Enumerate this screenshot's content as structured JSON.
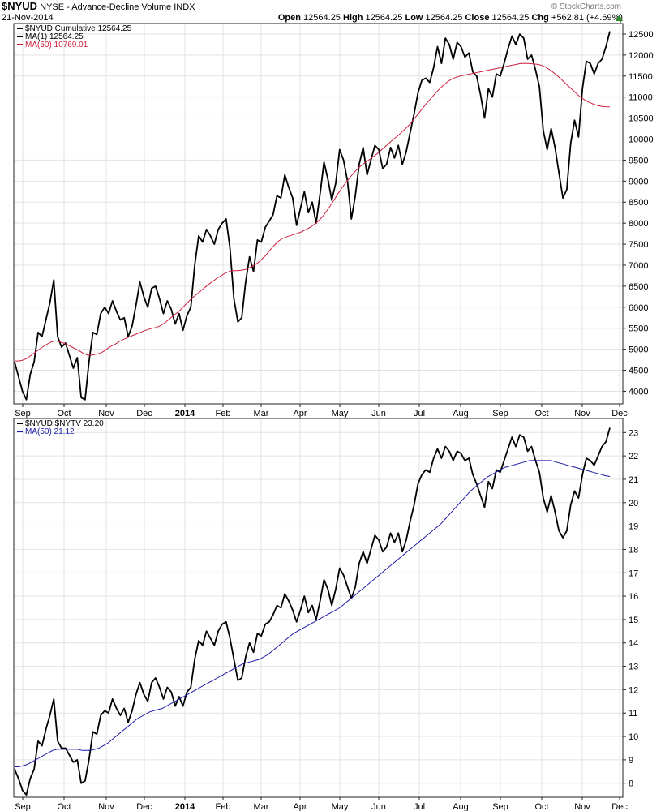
{
  "header": {
    "symbol": "$NYUD",
    "description": "NYSE - Advance-Decline Volume INDX",
    "date": "21-Nov-2014",
    "quote": {
      "open_label": "Open",
      "open": "12564.25",
      "high_label": "High",
      "high": "12564.25",
      "low_label": "Low",
      "low": "12564.25",
      "close_label": "Close",
      "close": "12564.25",
      "chg_label": "Chg",
      "chg": "+562.81 (+4.69%)"
    },
    "watermark": "© StockCharts.com",
    "up_arrow_icon": "triangle-up-icon",
    "up_color": "#2e8b2e"
  },
  "colors": {
    "price_line": "#000000",
    "ma_top": "#cc1f3e",
    "ma_bottom": "#1a1aa6",
    "grid": "#e3e3e3",
    "frame": "#222222"
  },
  "chart_data": [
    {
      "type": "line",
      "legend_placement": "top-left",
      "grid": true,
      "y_axis_side": "right",
      "legend": [
        {
          "label": "$NYUD Cumulative 12564.25",
          "color": "#000000"
        },
        {
          "label": "MA(1) 12564.25",
          "color": "#000000"
        },
        {
          "label": "MA(50) 10769.01",
          "color": "#cc1f3e"
        }
      ],
      "ylim": [
        3700,
        12750
      ],
      "yticks": [
        4000,
        4500,
        5000,
        5500,
        6000,
        6500,
        7000,
        7500,
        8000,
        8500,
        9000,
        9500,
        10000,
        10500,
        11000,
        11500,
        12000,
        12500
      ],
      "xticks": [
        "Sep",
        "Oct",
        "Nov",
        "Dec",
        "2014",
        "Feb",
        "Mar",
        "Apr",
        "May",
        "Jun",
        "Jul",
        "Aug",
        "Sep",
        "Oct",
        "Nov",
        "Dec"
      ],
      "series": [
        {
          "role": "price",
          "values": [
            4700,
            4350,
            4000,
            3800,
            4400,
            4700,
            5400,
            5300,
            5700,
            6100,
            6650,
            5300,
            5050,
            5150,
            4850,
            4550,
            4800,
            3850,
            3800,
            4700,
            5400,
            5350,
            5850,
            6000,
            5850,
            6150,
            5900,
            5700,
            5750,
            5300,
            5550,
            6050,
            6600,
            6250,
            6000,
            6450,
            6500,
            6200,
            5850,
            6150,
            5950,
            5600,
            5850,
            5450,
            5800,
            6000,
            7000,
            7700,
            7550,
            7850,
            7700,
            7500,
            7850,
            8000,
            8100,
            7400,
            6200,
            5650,
            5750,
            6600,
            7200,
            6850,
            7600,
            7550,
            7900,
            8050,
            8200,
            8650,
            8600,
            9150,
            8850,
            8600,
            7950,
            8350,
            8750,
            8250,
            8500,
            8000,
            8700,
            9450,
            9050,
            8550,
            8950,
            9750,
            9500,
            9000,
            8100,
            8650,
            9400,
            9800,
            9150,
            9500,
            9850,
            9750,
            9300,
            9400,
            9800,
            9550,
            9850,
            9400,
            9700,
            10150,
            10600,
            11100,
            11400,
            11450,
            11350,
            11700,
            12200,
            11800,
            12400,
            12250,
            11900,
            12300,
            12200,
            11950,
            12050,
            11600,
            11500,
            11050,
            10500,
            11200,
            11000,
            11550,
            11500,
            11800,
            12150,
            12450,
            12250,
            12500,
            12400,
            11900,
            12000,
            11650,
            11250,
            10200,
            9750,
            10250,
            9800,
            9200,
            8600,
            8800,
            9900,
            10450,
            10050,
            11200,
            11850,
            11800,
            11550,
            11800,
            11900,
            12200,
            12564
          ]
        },
        {
          "role": "ma50",
          "values": [
            4720,
            4720,
            4740,
            4780,
            4850,
            4920,
            4990,
            5060,
            5120,
            5170,
            5200,
            5180,
            5150,
            5110,
            5060,
            5010,
            4960,
            4900,
            4860,
            4860,
            4880,
            4900,
            4950,
            5020,
            5080,
            5130,
            5190,
            5240,
            5280,
            5320,
            5360,
            5400,
            5440,
            5470,
            5500,
            5520,
            5560,
            5620,
            5700,
            5780,
            5860,
            5940,
            6040,
            6140,
            6230,
            6310,
            6390,
            6470,
            6550,
            6620,
            6690,
            6750,
            6810,
            6850,
            6870,
            6870,
            6880,
            6900,
            6940,
            6990,
            7050,
            7140,
            7230,
            7350,
            7460,
            7560,
            7630,
            7670,
            7700,
            7730,
            7760,
            7800,
            7850,
            7900,
            7970,
            8050,
            8150,
            8280,
            8420,
            8570,
            8720,
            8860,
            8990,
            9110,
            9220,
            9320,
            9400,
            9470,
            9540,
            9610,
            9690,
            9780,
            9860,
            9950,
            10030,
            10110,
            10200,
            10290,
            10400,
            10520,
            10640,
            10760,
            10880,
            10990,
            11100,
            11200,
            11290,
            11370,
            11430,
            11470,
            11500,
            11520,
            11540,
            11560,
            11580,
            11600,
            11620,
            11640,
            11660,
            11680,
            11700,
            11720,
            11740,
            11760,
            11780,
            11800,
            11800,
            11800,
            11790,
            11780,
            11760,
            11720,
            11660,
            11590,
            11510,
            11420,
            11330,
            11240,
            11150,
            11060,
            10980,
            10920,
            10870,
            10830,
            10800,
            10780,
            10770,
            10769
          ]
        }
      ]
    },
    {
      "type": "line",
      "legend_placement": "top-left",
      "grid": true,
      "y_axis_side": "right",
      "legend": [
        {
          "label": "$NYUD:$NYTV 23.20",
          "color": "#000000"
        },
        {
          "label": "MA(50) 21.12",
          "color": "#1a1aa6"
        }
      ],
      "ylim": [
        7.4,
        23.6
      ],
      "yticks": [
        8,
        9,
        10,
        11,
        12,
        13,
        14,
        15,
        16,
        17,
        18,
        19,
        20,
        21,
        22,
        23
      ],
      "xticks": [
        "Sep",
        "Oct",
        "Nov",
        "Dec",
        "2014",
        "Feb",
        "Mar",
        "Apr",
        "May",
        "Jun",
        "Jul",
        "Aug",
        "Sep",
        "Oct",
        "Nov",
        "Dec"
      ],
      "series": [
        {
          "role": "ratio",
          "values": [
            8.6,
            8.2,
            7.7,
            7.5,
            8.2,
            8.6,
            9.8,
            9.6,
            10.3,
            10.9,
            11.6,
            9.8,
            9.5,
            9.5,
            9.2,
            8.9,
            9.0,
            8.0,
            8.1,
            9.0,
            10.2,
            10.1,
            10.9,
            11.1,
            11.0,
            11.6,
            11.2,
            10.9,
            11.2,
            10.6,
            11.1,
            11.8,
            12.3,
            11.8,
            11.5,
            12.3,
            12.5,
            12.1,
            11.6,
            12.1,
            11.9,
            11.3,
            11.7,
            11.3,
            11.9,
            12.1,
            13.3,
            14.1,
            13.9,
            14.5,
            14.2,
            13.9,
            14.5,
            14.8,
            14.9,
            14.2,
            13.3,
            12.4,
            12.5,
            13.4,
            14.0,
            13.6,
            14.4,
            14.3,
            14.8,
            14.9,
            15.2,
            15.6,
            15.5,
            16.1,
            15.8,
            15.4,
            14.9,
            15.4,
            16.0,
            15.3,
            15.6,
            15.0,
            15.8,
            16.7,
            16.3,
            15.6,
            16.3,
            17.2,
            16.9,
            16.4,
            15.9,
            16.4,
            17.4,
            17.9,
            17.4,
            18.0,
            18.6,
            18.4,
            17.9,
            18.1,
            18.7,
            18.3,
            18.7,
            17.9,
            18.4,
            19.2,
            19.9,
            20.8,
            21.2,
            21.4,
            21.3,
            21.9,
            22.3,
            21.9,
            22.4,
            22.2,
            21.8,
            22.2,
            22.1,
            21.8,
            21.9,
            21.2,
            20.8,
            20.3,
            19.8,
            20.9,
            20.6,
            21.4,
            21.3,
            21.8,
            22.3,
            22.8,
            22.4,
            22.9,
            22.8,
            22.2,
            22.4,
            21.8,
            21.3,
            20.2,
            19.6,
            20.3,
            19.6,
            18.8,
            18.5,
            18.8,
            19.9,
            20.5,
            20.2,
            21.2,
            21.9,
            21.8,
            21.6,
            22.0,
            22.4,
            22.6,
            23.2
          ]
        },
        {
          "role": "ma50",
          "values": [
            8.7,
            8.7,
            8.75,
            8.8,
            8.9,
            9.0,
            9.1,
            9.2,
            9.3,
            9.4,
            9.45,
            9.45,
            9.45,
            9.45,
            9.45,
            9.45,
            9.4,
            9.4,
            9.4,
            9.45,
            9.5,
            9.6,
            9.7,
            9.85,
            10.0,
            10.15,
            10.3,
            10.45,
            10.6,
            10.75,
            10.85,
            10.95,
            11.05,
            11.1,
            11.15,
            11.2,
            11.3,
            11.4,
            11.5,
            11.6,
            11.7,
            11.8,
            11.9,
            12.0,
            12.1,
            12.2,
            12.3,
            12.4,
            12.5,
            12.6,
            12.7,
            12.8,
            12.9,
            13.0,
            13.1,
            13.15,
            13.2,
            13.25,
            13.3,
            13.4,
            13.5,
            13.65,
            13.8,
            13.95,
            14.1,
            14.25,
            14.4,
            14.5,
            14.6,
            14.7,
            14.8,
            14.9,
            15.0,
            15.1,
            15.2,
            15.3,
            15.4,
            15.5,
            15.65,
            15.8,
            15.95,
            16.1,
            16.25,
            16.4,
            16.55,
            16.7,
            16.85,
            17.0,
            17.15,
            17.3,
            17.45,
            17.6,
            17.75,
            17.9,
            18.05,
            18.2,
            18.35,
            18.5,
            18.65,
            18.8,
            18.95,
            19.1,
            19.3,
            19.5,
            19.7,
            19.9,
            20.1,
            20.3,
            20.5,
            20.65,
            20.8,
            20.95,
            21.1,
            21.2,
            21.3,
            21.4,
            21.5,
            21.55,
            21.6,
            21.65,
            21.7,
            21.75,
            21.8,
            21.8,
            21.8,
            21.8,
            21.8,
            21.8,
            21.75,
            21.7,
            21.65,
            21.6,
            21.55,
            21.5,
            21.45,
            21.4,
            21.35,
            21.3,
            21.25,
            21.2,
            21.15,
            21.12
          ]
        }
      ]
    }
  ]
}
